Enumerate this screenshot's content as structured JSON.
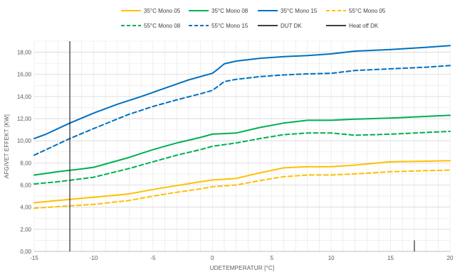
{
  "chart_data": {
    "type": "line",
    "xlabel": "UDETEMPERATUR [°C]",
    "ylabel": "AFGIVET EFFEKT [KW]",
    "xlim": [
      -15,
      20
    ],
    "ylim": [
      0,
      19
    ],
    "x_ticks": [
      "-15",
      "-10",
      "-5",
      "0",
      "5",
      "10",
      "15",
      "20"
    ],
    "y_ticks": [
      "0,00",
      "2,00",
      "4,00",
      "6,00",
      "8,00",
      "10,00",
      "12,00",
      "14,00",
      "16,00",
      "18,00"
    ],
    "x_tick_values": [
      -15,
      -10,
      -5,
      0,
      5,
      10,
      15,
      20
    ],
    "y_tick_values": [
      0,
      2,
      4,
      6,
      8,
      10,
      12,
      14,
      16,
      18
    ],
    "grid": true,
    "legend_position": "top",
    "series": [
      {
        "name": "35°C Mono 05",
        "color": "#FFC000",
        "dash": "solid",
        "x": [
          -15,
          -13,
          -10,
          -7,
          -5,
          -3,
          -1,
          0,
          2,
          4,
          6,
          8,
          10,
          12,
          15,
          18,
          20
        ],
        "y": [
          4.4,
          4.6,
          4.9,
          5.2,
          5.6,
          5.95,
          6.3,
          6.45,
          6.6,
          7.1,
          7.55,
          7.65,
          7.65,
          7.8,
          8.1,
          8.15,
          8.2
        ]
      },
      {
        "name": "35°C Mono 08",
        "color": "#00B050",
        "dash": "solid",
        "x": [
          -15,
          -13,
          -11,
          -10,
          -7,
          -5,
          -3,
          -1,
          0,
          1,
          2,
          4,
          6,
          8,
          10,
          12,
          15,
          18,
          20
        ],
        "y": [
          6.9,
          7.2,
          7.45,
          7.6,
          8.5,
          9.2,
          9.8,
          10.3,
          10.6,
          10.65,
          10.7,
          11.2,
          11.6,
          11.85,
          11.85,
          11.95,
          12.05,
          12.2,
          12.3
        ]
      },
      {
        "name": "35°C Mono 15",
        "color": "#0070C0",
        "dash": "solid",
        "x": [
          -15,
          -14,
          -12,
          -10,
          -8,
          -6,
          -4,
          -2,
          0,
          0.5,
          1,
          2,
          4,
          6,
          8,
          10,
          12,
          15,
          18,
          20
        ],
        "y": [
          10.2,
          10.6,
          11.6,
          12.5,
          13.3,
          14.0,
          14.75,
          15.5,
          16.1,
          16.5,
          16.95,
          17.2,
          17.45,
          17.6,
          17.7,
          17.85,
          18.1,
          18.25,
          18.45,
          18.6
        ]
      },
      {
        "name": "55°C Mono 05",
        "color": "#FFC000",
        "dash": "dashed",
        "x": [
          -15,
          -13,
          -10,
          -7,
          -5,
          -3,
          -1,
          0,
          2,
          4,
          6,
          8,
          10,
          12,
          15,
          18,
          20
        ],
        "y": [
          3.9,
          4.05,
          4.25,
          4.6,
          5.0,
          5.35,
          5.65,
          5.85,
          6.0,
          6.4,
          6.75,
          6.9,
          6.9,
          7.0,
          7.2,
          7.3,
          7.35
        ]
      },
      {
        "name": "55°C Mono 08",
        "color": "#00B050",
        "dash": "dashed",
        "x": [
          -15,
          -13,
          -10,
          -7,
          -5,
          -3,
          -1,
          0,
          2,
          4,
          6,
          8,
          10,
          12,
          15,
          18,
          20
        ],
        "y": [
          6.1,
          6.3,
          6.7,
          7.5,
          8.1,
          8.7,
          9.2,
          9.5,
          9.8,
          10.2,
          10.55,
          10.7,
          10.7,
          10.5,
          10.6,
          10.75,
          10.85
        ]
      },
      {
        "name": "55°C Mono 15",
        "color": "#0070C0",
        "dash": "dashed",
        "x": [
          -15,
          -12,
          -10,
          -7,
          -5,
          -3,
          -1,
          0,
          0.5,
          1,
          2,
          4,
          6,
          8,
          10,
          12,
          15,
          18,
          20
        ],
        "y": [
          8.7,
          10.2,
          11.1,
          12.4,
          13.1,
          13.7,
          14.25,
          14.55,
          14.95,
          15.35,
          15.55,
          15.8,
          15.95,
          16.05,
          16.1,
          16.35,
          16.5,
          16.65,
          16.8
        ]
      },
      {
        "name": "DUT DK",
        "color": "#000000",
        "dash": "solid",
        "type": "vline",
        "x": -12
      },
      {
        "name": "Heat off DK",
        "color": "#000000",
        "dash": "solid",
        "type": "vline",
        "x": 17,
        "y_range": [
          0,
          1.0
        ]
      }
    ]
  }
}
